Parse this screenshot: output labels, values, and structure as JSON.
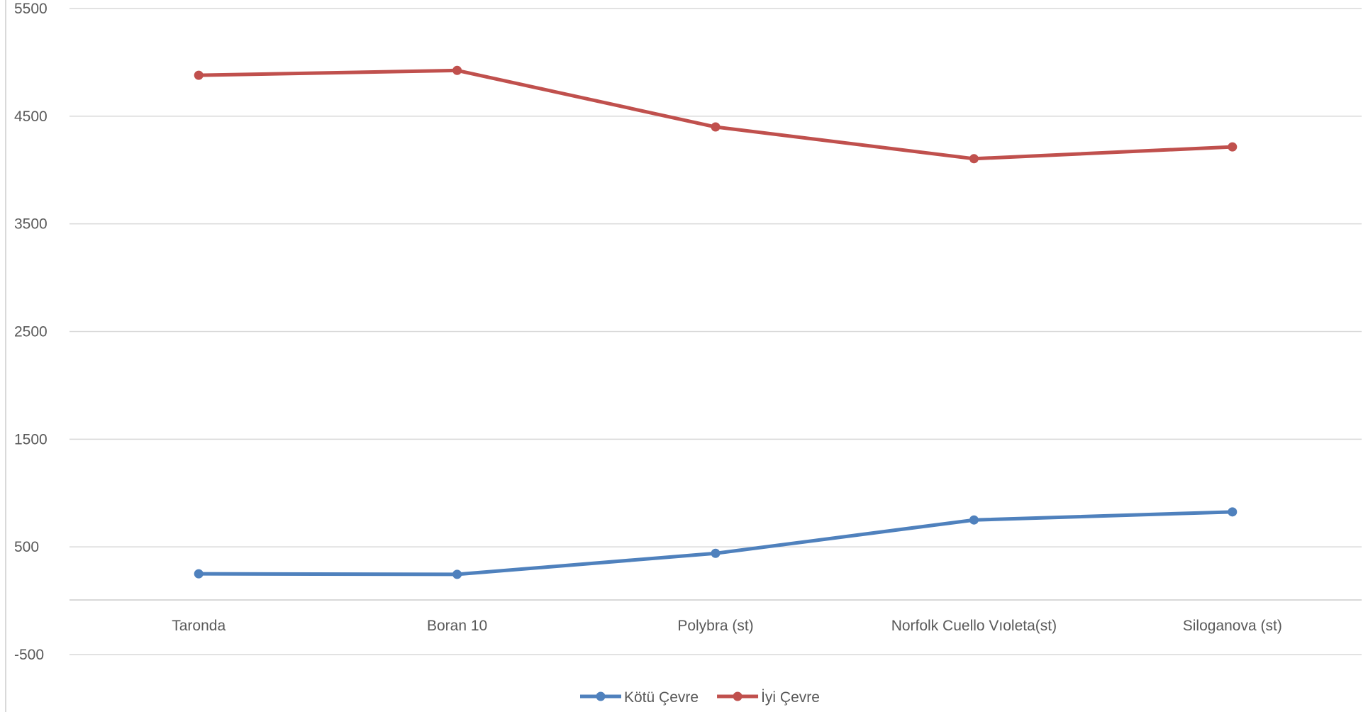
{
  "chart_data": {
    "type": "line",
    "categories": [
      "Taronda",
      "Boran 10",
      "Polybra (st)",
      "Norfolk Cuello Vıoleta(st)",
      "Siloganova (st)"
    ],
    "series": [
      {
        "name": "Kötü Çevre",
        "color": "#4F81BD",
        "values": [
          250,
          245,
          440,
          750,
          825
        ]
      },
      {
        "name": "İyi Çevre",
        "color": "#C0504D",
        "values": [
          4880,
          4925,
          4400,
          4105,
          4215
        ]
      }
    ],
    "ylim": [
      -500,
      5500
    ],
    "yticks": [
      -500,
      500,
      1500,
      2500,
      3500,
      4500,
      5500
    ],
    "grid": true,
    "legend_position": "bottom",
    "title": "",
    "xlabel": "",
    "ylabel": ""
  }
}
